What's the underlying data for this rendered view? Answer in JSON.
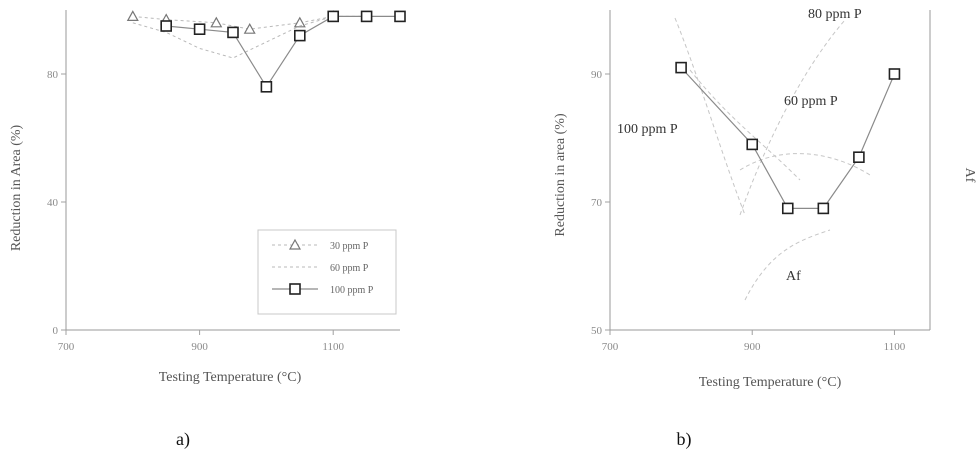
{
  "captions": {
    "a": "a)",
    "b": "b)"
  },
  "chart_data": [
    {
      "type": "line",
      "panel": "a",
      "xlabel": "Testing Temperature (°C)",
      "ylabel": "Reduction in Area (%)",
      "xlim": [
        700,
        1200
      ],
      "ylim": [
        0,
        100
      ],
      "xticks": [
        "700",
        "900",
        "1100"
      ],
      "yticks": [
        "0",
        "40",
        "80"
      ],
      "legend": "bottom-right",
      "series": [
        {
          "name": "30 ppm P",
          "marker": "triangle",
          "x": [
            800,
            850,
            925,
            975,
            1050,
            1100
          ],
          "y": [
            98,
            97,
            96,
            94,
            96,
            98
          ]
        },
        {
          "name": "60 ppm P",
          "marker": "none",
          "x": [
            800,
            850,
            900,
            950,
            1000,
            1050,
            1100,
            1150
          ],
          "y": [
            96,
            93,
            88,
            85,
            90,
            95,
            98,
            98
          ]
        },
        {
          "name": "100 ppm P",
          "marker": "square",
          "x": [
            850,
            900,
            950,
            1000,
            1050,
            1100,
            1150,
            1200
          ],
          "y": [
            95,
            94,
            93,
            76,
            92,
            98,
            98,
            98
          ]
        }
      ]
    },
    {
      "type": "line",
      "panel": "b",
      "xlabel": "Testing Temperature (°C)",
      "ylabel": "Reduction in area (%)",
      "y2label": "Af",
      "xlim": [
        700,
        1150
      ],
      "ylim": [
        50,
        100
      ],
      "xticks": [
        "700",
        "900",
        "1100"
      ],
      "yticks": [
        "50",
        "70",
        "90"
      ],
      "annotations": [
        "80 ppm P",
        "60 ppm P",
        "100 ppm P",
        "Af"
      ],
      "series": [
        {
          "name": "100 ppm P",
          "marker": "square",
          "x": [
            800,
            900,
            950,
            1000,
            1050,
            1100
          ],
          "y": [
            91,
            79,
            69,
            69,
            77,
            90
          ]
        }
      ]
    }
  ]
}
